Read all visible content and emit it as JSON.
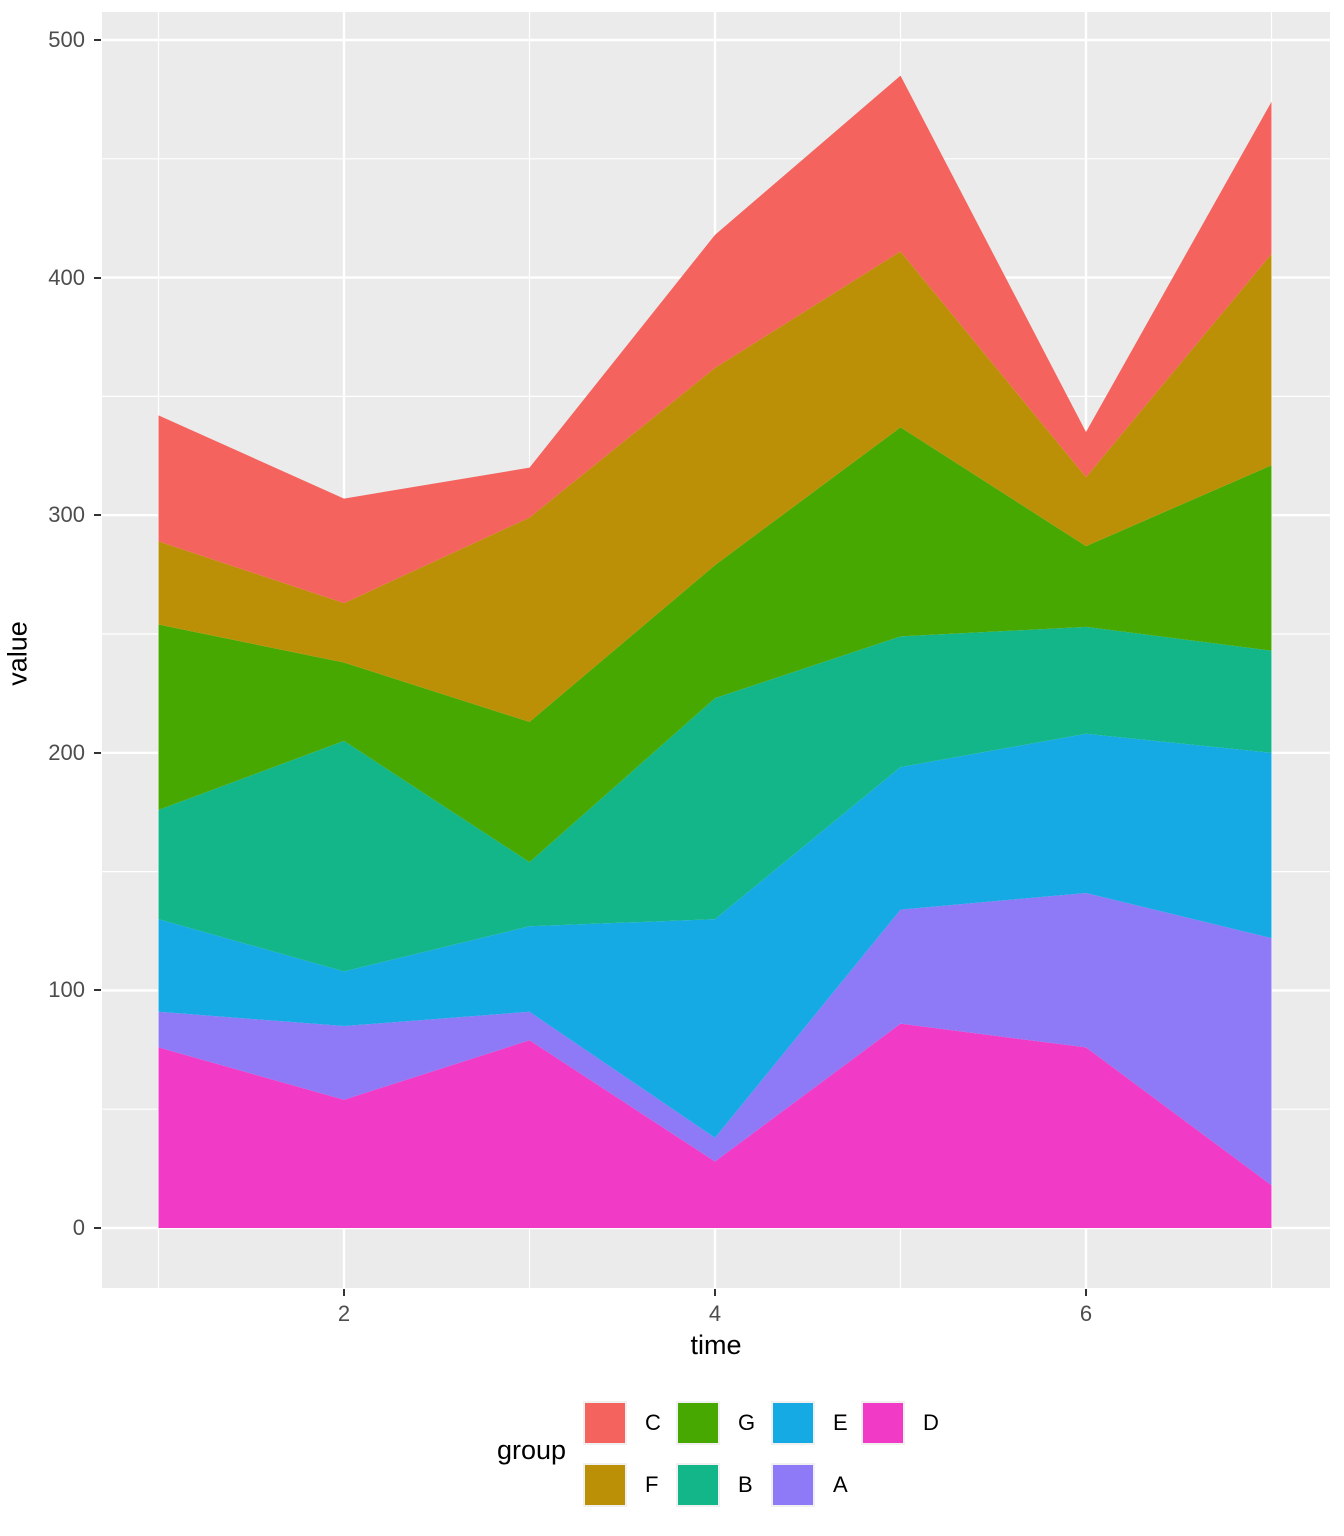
{
  "chart_data": {
    "type": "area",
    "stacked": true,
    "xlabel": "time",
    "ylabel": "value",
    "legend_title": "group",
    "x": [
      1,
      2,
      3,
      4,
      5,
      6,
      7
    ],
    "x_ticks": [
      2,
      4,
      6
    ],
    "y_ticks": [
      0,
      100,
      200,
      300,
      400,
      500
    ],
    "y_minor_ticks": [
      50,
      150,
      250,
      350,
      450
    ],
    "x_minor_ticks": [
      1,
      3,
      5,
      7
    ],
    "ylim": [
      0,
      500
    ],
    "grid": true,
    "panel_color": "#ebebeb",
    "grid_color": "#ffffff",
    "stack_order_bottom_to_top": [
      "D",
      "A",
      "E",
      "B",
      "G",
      "F",
      "C"
    ],
    "series": [
      {
        "name": "D",
        "color": "#f13bc7",
        "values": [
          76,
          54,
          79,
          28,
          86,
          76,
          18
        ]
      },
      {
        "name": "A",
        "color": "#8e79f6",
        "values": [
          15,
          31,
          12,
          10,
          48,
          65,
          104
        ]
      },
      {
        "name": "E",
        "color": "#16aae4",
        "values": [
          39,
          23,
          36,
          92,
          60,
          67,
          78
        ]
      },
      {
        "name": "B",
        "color": "#12b688",
        "values": [
          46,
          97,
          27,
          93,
          55,
          45,
          43
        ]
      },
      {
        "name": "G",
        "color": "#48a802",
        "values": [
          78,
          33,
          59,
          56,
          88,
          34,
          78
        ]
      },
      {
        "name": "F",
        "color": "#bc9006",
        "values": [
          35,
          25,
          86,
          83,
          74,
          29,
          89
        ]
      },
      {
        "name": "C",
        "color": "#f4635d",
        "values": [
          53,
          44,
          21,
          56,
          74,
          19,
          64
        ]
      }
    ],
    "cumulative_tops": {
      "t1": [
        76,
        91,
        130,
        176,
        254,
        289,
        342
      ],
      "t2": [
        54,
        85,
        108,
        205,
        238,
        263,
        307
      ],
      "t3": [
        79,
        91,
        127,
        154,
        213,
        299,
        320
      ],
      "t4": [
        28,
        38,
        130,
        223,
        279,
        362,
        418
      ],
      "t5": [
        86,
        134,
        194,
        249,
        337,
        411,
        485
      ],
      "t6": [
        76,
        141,
        208,
        253,
        287,
        316,
        335
      ],
      "t7": [
        18,
        122,
        200,
        243,
        321,
        410,
        474
      ]
    },
    "legend_position": "bottom",
    "legend_rows": [
      [
        "C",
        "G",
        "E",
        "D"
      ],
      [
        "F",
        "B",
        "A"
      ]
    ]
  },
  "axis": {
    "y_tick_labels": [
      "0",
      "100",
      "200",
      "300",
      "400",
      "500"
    ],
    "x_tick_labels": [
      "2",
      "4",
      "6"
    ]
  }
}
